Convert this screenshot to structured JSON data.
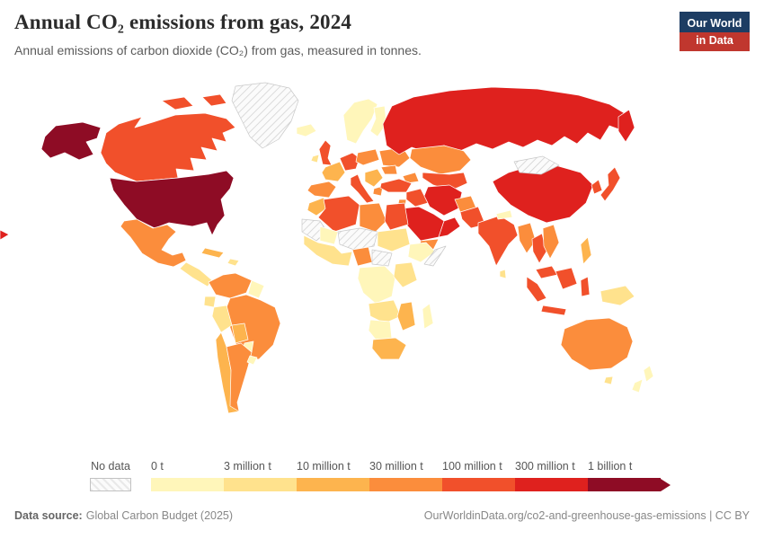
{
  "header": {
    "title": "Annual CO₂ emissions from gas, 2024",
    "subtitle": "Annual emissions of carbon dioxide (CO₂) from gas, measured in tonnes.",
    "logo": {
      "line1": "Our World",
      "line2": "in Data",
      "bg_color": "#1d3d63",
      "accent_color": "#c0372e"
    }
  },
  "footer": {
    "source_label": "Data source:",
    "source": "Global Carbon Budget (2025)",
    "attribution": "OurWorldinData.org/co2-and-greenhouse-gas-emissions | CC BY"
  },
  "chart_data": {
    "type": "heatmap",
    "subtype": "world-choropleth",
    "title": "Annual CO₂ emissions from gas, 2024",
    "unit": "tonnes of CO₂ from gas",
    "year": "2024",
    "no_data_label": "No data",
    "legend_note": "bins are lower-bound labels; each region value below is an index into bins, or no-data",
    "bins": [
      {
        "label": "0 t",
        "color": "#fff6ba"
      },
      {
        "label": "3 million t",
        "color": "#ffe28d"
      },
      {
        "label": "10 million t",
        "color": "#fdb44e"
      },
      {
        "label": "30 million t",
        "color": "#fb8d3c"
      },
      {
        "label": "100 million t",
        "color": "#f1502b"
      },
      {
        "label": "300 million t",
        "color": "#df211e"
      },
      {
        "label": "1 billion t",
        "color": "#8e0c25"
      }
    ],
    "regions": {
      "alaska": 6,
      "canada": 4,
      "canadian-arctic-1": 4,
      "canadian-arctic-2": 4,
      "greenland": "no-data",
      "united-states": 6,
      "mexico": 3,
      "central-america": 1,
      "cuba": 2,
      "hispaniola": 1,
      "colombia-venezuela": 3,
      "guyanas": 0,
      "ecuador": 1,
      "peru": 1,
      "brazil": 3,
      "bolivia": 2,
      "paraguay": 0,
      "chile": 2,
      "argentina": 3,
      "uruguay": 0,
      "iceland": 0,
      "uk": 4,
      "ireland": 1,
      "scandinavia": 0,
      "finland-baltics": 0,
      "western-europe": 4,
      "france": 2,
      "iberia": 3,
      "italy": 4,
      "central-europe": 3,
      "balkans": 2,
      "greece": 3,
      "ukraine-belarus": 3,
      "romania": 3,
      "russia": 5,
      "kamchatka": 5,
      "kazakhstan": 3,
      "uzbekistan-turkmenistan": 4,
      "caucasus": 3,
      "turkey": 4,
      "syria-iraq": 4,
      "iran": 5,
      "saudi-arabia": 5,
      "gulf-states": 5,
      "yemen": 3,
      "israel-jordan": 3,
      "morocco": 2,
      "algeria": 4,
      "libya": 3,
      "egypt": 4,
      "mauritania-sahara": "no-data",
      "mali": 0,
      "niger-chad": "no-data",
      "sudan": 1,
      "west-africa": 1,
      "nigeria": 3,
      "cameroon-car": "no-data",
      "ethiopia": 0,
      "somalia": "no-data",
      "drc": 0,
      "east-africa": 1,
      "angola-zambia": 1,
      "mozambique-zimbabwe": 2,
      "namibia-botswana": 0,
      "south-africa": 2,
      "madagascar": 0,
      "afghanistan": 3,
      "pakistan": 4,
      "india": 4,
      "bangladesh-myanmar": 3,
      "sri-lanka": 1,
      "nepal": 0,
      "china": 5,
      "mongolia": "no-data",
      "korea": 4,
      "japan": 4,
      "thailand": 4,
      "vietnam-laos": 3,
      "malaysia": 4,
      "philippines": 2,
      "sumatra": 4,
      "borneo": 4,
      "java": 4,
      "sulawesi": 4,
      "new-guinea": 1,
      "australia": 3,
      "tasmania": 1,
      "new-zealand-north": 0,
      "new-zealand-south": 0,
      "left-edge-fragment": 5
    }
  }
}
